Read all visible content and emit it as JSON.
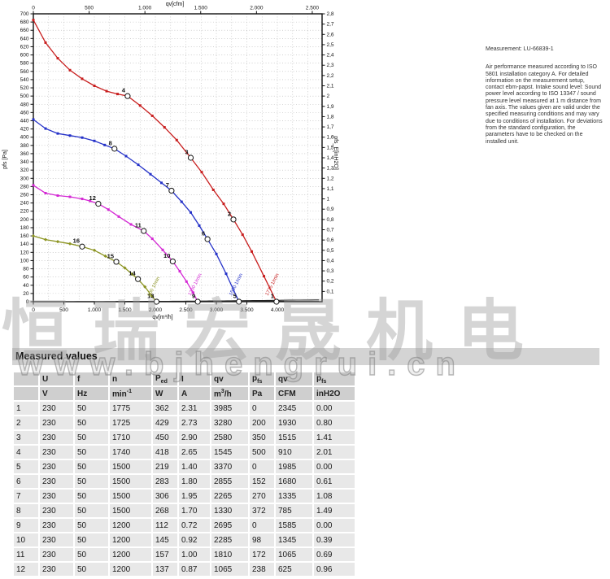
{
  "note": {
    "measurement": "Measurement: LU-66839-1",
    "body": "Air performance measured according to ISO 5801 installation category A. For detailed information on the measurement setup, contact ebm-papst. Intake sound level: Sound power level according to ISO 13347 / sound pressure level measured at 1 m distance from fan axis. The values given are valid under the specified measuring conditions and may vary due to conditions of installation. For deviations from the standard configuration, the parameters have to be checked on the installed unit.",
    "text_color": "#333333"
  },
  "watermarks": {
    "chinese": "恒瑞宏晟机电",
    "url": "www.bjhengrui.cn"
  },
  "table": {
    "title": "Measured values",
    "columns": [
      {
        "label": "",
        "unit": ""
      },
      {
        "label": "U",
        "unit": "V"
      },
      {
        "label": "f",
        "unit": "Hz"
      },
      {
        "label": "n",
        "unit": "min^{-1}"
      },
      {
        "label": "P_{ed}",
        "unit": "W"
      },
      {
        "label": "I",
        "unit": "A"
      },
      {
        "label": "qv",
        "unit": "m^{3}/h"
      },
      {
        "label": "p_{fs}",
        "unit": "Pa"
      },
      {
        "label": "qv",
        "unit": "CFM"
      },
      {
        "label": "p_{fs}",
        "unit": "inH2O"
      }
    ],
    "rows": [
      [
        "1",
        "230",
        "50",
        "1775",
        "362",
        "2.31",
        "3985",
        "0",
        "2345",
        "0.00"
      ],
      [
        "2",
        "230",
        "50",
        "1725",
        "429",
        "2.73",
        "3280",
        "200",
        "1930",
        "0.80"
      ],
      [
        "3",
        "230",
        "50",
        "1710",
        "450",
        "2.90",
        "2580",
        "350",
        "1515",
        "1.41"
      ],
      [
        "4",
        "230",
        "50",
        "1740",
        "418",
        "2.65",
        "1545",
        "500",
        "910",
        "2.01"
      ],
      [
        "5",
        "230",
        "50",
        "1500",
        "219",
        "1.40",
        "3370",
        "0",
        "1985",
        "0.00"
      ],
      [
        "6",
        "230",
        "50",
        "1500",
        "283",
        "1.80",
        "2855",
        "152",
        "1680",
        "0.61"
      ],
      [
        "7",
        "230",
        "50",
        "1500",
        "306",
        "1.95",
        "2265",
        "270",
        "1335",
        "1.08"
      ],
      [
        "8",
        "230",
        "50",
        "1500",
        "268",
        "1.70",
        "1330",
        "372",
        "785",
        "1.49"
      ],
      [
        "9",
        "230",
        "50",
        "1200",
        "112",
        "0.72",
        "2695",
        "0",
        "1585",
        "0.00"
      ],
      [
        "10",
        "230",
        "50",
        "1200",
        "145",
        "0.92",
        "2285",
        "98",
        "1345",
        "0.39"
      ],
      [
        "11",
        "230",
        "50",
        "1200",
        "157",
        "1.00",
        "1810",
        "172",
        "1065",
        "0.69"
      ],
      [
        "12",
        "230",
        "50",
        "1200",
        "137",
        "0.87",
        "1065",
        "238",
        "625",
        "0.96"
      ]
    ]
  },
  "chart_data": {
    "type": "line",
    "title": "",
    "axes": {
      "bottom": {
        "label": "qv[m³/h]",
        "min": 0,
        "max": 4733,
        "tick_step": 500,
        "tick_max": 4000,
        "grid_step": 250
      },
      "top": {
        "label": "qv[cfm]",
        "min": 0,
        "max": 2588,
        "tick_step": 500,
        "tick_max": 2500
      },
      "left": {
        "label": "pfs [Pa]",
        "min": 0,
        "max": 700,
        "tick_step": 20,
        "grid_step": 20
      },
      "right": {
        "label": "pfs_E[inH2O]",
        "min": 0,
        "max": 2.8,
        "tick_step": 0.1
      }
    },
    "grid": true,
    "series": [
      {
        "name": "1775 1/min",
        "rpm": 1775,
        "color": "#c81e1e",
        "marker": "square",
        "points": [
          [
            0,
            685
          ],
          [
            200,
            630
          ],
          [
            400,
            592
          ],
          [
            600,
            563
          ],
          [
            800,
            542
          ],
          [
            1000,
            525
          ],
          [
            1200,
            512
          ],
          [
            1380,
            505
          ],
          [
            1545,
            500
          ],
          [
            1750,
            477
          ],
          [
            1950,
            452
          ],
          [
            2150,
            424
          ],
          [
            2350,
            393
          ],
          [
            2580,
            350
          ],
          [
            2760,
            315
          ],
          [
            2950,
            272
          ],
          [
            3120,
            238
          ],
          [
            3280,
            200
          ],
          [
            3430,
            163
          ],
          [
            3580,
            122
          ],
          [
            3780,
            62
          ],
          [
            3985,
            0
          ]
        ]
      },
      {
        "name": "1500 1/min",
        "rpm": 1500,
        "color": "#2431c8",
        "marker": "square",
        "points": [
          [
            0,
            443
          ],
          [
            200,
            421
          ],
          [
            400,
            409
          ],
          [
            600,
            404
          ],
          [
            800,
            399
          ],
          [
            1000,
            391
          ],
          [
            1170,
            381
          ],
          [
            1330,
            372
          ],
          [
            1520,
            354
          ],
          [
            1720,
            333
          ],
          [
            1920,
            310
          ],
          [
            2100,
            289
          ],
          [
            2265,
            270
          ],
          [
            2430,
            243
          ],
          [
            2580,
            217
          ],
          [
            2720,
            185
          ],
          [
            2855,
            152
          ],
          [
            3000,
            116
          ],
          [
            3160,
            68
          ],
          [
            3370,
            0
          ]
        ]
      },
      {
        "name": "1200 1/min",
        "rpm": 1200,
        "color": "#d428d4",
        "marker": "square",
        "points": [
          [
            0,
            283
          ],
          [
            200,
            264
          ],
          [
            400,
            258
          ],
          [
            600,
            255
          ],
          [
            800,
            250
          ],
          [
            930,
            245
          ],
          [
            1065,
            238
          ],
          [
            1230,
            224
          ],
          [
            1400,
            207
          ],
          [
            1600,
            188
          ],
          [
            1810,
            172
          ],
          [
            1950,
            153
          ],
          [
            2120,
            126
          ],
          [
            2285,
            98
          ],
          [
            2400,
            74
          ],
          [
            2510,
            49
          ],
          [
            2620,
            22
          ],
          [
            2695,
            0
          ]
        ]
      },
      {
        "name": "900 1/min",
        "rpm": 900,
        "color": "#8c9422",
        "marker": "diamond",
        "points": [
          [
            0,
            160
          ],
          [
            200,
            151
          ],
          [
            400,
            146
          ],
          [
            600,
            141
          ],
          [
            800,
            134
          ],
          [
            1000,
            125
          ],
          [
            1180,
            111
          ],
          [
            1360,
            97
          ],
          [
            1500,
            82
          ],
          [
            1620,
            67
          ],
          [
            1715,
            55
          ],
          [
            1830,
            36
          ],
          [
            1940,
            14
          ],
          [
            2020,
            0
          ]
        ]
      }
    ],
    "system_curves": [
      {
        "k": 2.095e-07
      },
      {
        "k": 5.26e-08
      },
      {
        "k": 1.86e-08
      },
      {
        "k": 6.9e-09
      }
    ],
    "operating_points": [
      {
        "n": 1,
        "qv": 3985,
        "p": 0
      },
      {
        "n": 2,
        "qv": 3280,
        "p": 200
      },
      {
        "n": 3,
        "qv": 2580,
        "p": 350
      },
      {
        "n": 4,
        "qv": 1545,
        "p": 500
      },
      {
        "n": 5,
        "qv": 3370,
        "p": 0
      },
      {
        "n": 6,
        "qv": 2855,
        "p": 152
      },
      {
        "n": 7,
        "qv": 2265,
        "p": 270
      },
      {
        "n": 8,
        "qv": 1330,
        "p": 372
      },
      {
        "n": 9,
        "qv": 2695,
        "p": 0
      },
      {
        "n": 10,
        "qv": 2285,
        "p": 98
      },
      {
        "n": 11,
        "qv": 1810,
        "p": 172
      },
      {
        "n": 12,
        "qv": 1065,
        "p": 238
      },
      {
        "n": 13,
        "qv": 2020,
        "p": 0
      },
      {
        "n": 14,
        "qv": 1715,
        "p": 55
      },
      {
        "n": 15,
        "qv": 1360,
        "p": 97
      },
      {
        "n": 16,
        "qv": 800,
        "p": 134
      }
    ],
    "speed_labels": [
      {
        "text": "1775 1/min",
        "qv": 3845,
        "p": 14,
        "color": "#c81e1e"
      },
      {
        "text": "1500 1/min",
        "qv": 3250,
        "p": 14,
        "color": "#2431c8"
      },
      {
        "text": "1200 1/min",
        "qv": 2580,
        "p": 14,
        "color": "#d428d4"
      },
      {
        "text": "900 1/min",
        "qv": 1915,
        "p": 12,
        "color": "#8c9422"
      }
    ]
  }
}
